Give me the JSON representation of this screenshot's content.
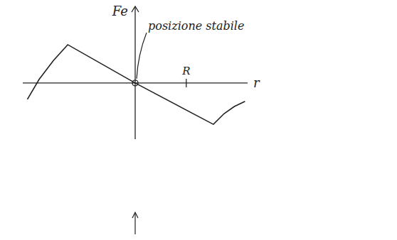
{
  "chart_data": {
    "type": "line",
    "x": [
      -2.11,
      -1.88,
      -1.6,
      -1.32,
      0,
      1.53,
      1.74,
      1.94,
      2.15
    ],
    "values": [
      -0.32,
      0.07,
      0.44,
      0.75,
      0,
      -0.81,
      -0.6,
      -0.46,
      -0.36
    ],
    "xlabel": "r",
    "ylabel": "Fe",
    "annotations": [
      {
        "text": "posizione stabile",
        "x": 0,
        "y": 0
      }
    ],
    "xlim": [
      -2.2,
      2.2
    ],
    "ylim": [
      -1.1,
      1.5
    ],
    "xticks": [
      {
        "value": 1,
        "label": "R"
      }
    ],
    "tick_labels": "x",
    "grid": false,
    "color": "#222222"
  }
}
